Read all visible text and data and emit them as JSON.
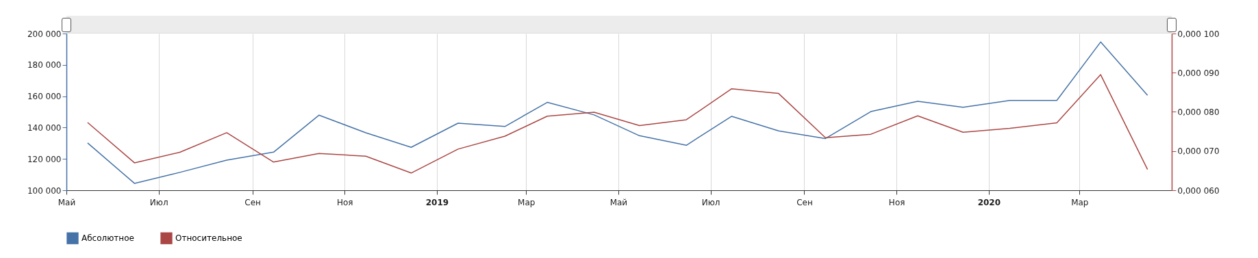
{
  "chart_data": {
    "type": "line",
    "x": [
      "2018-05-15",
      "2018-06-15",
      "2018-07-15",
      "2018-08-15",
      "2018-09-15",
      "2018-10-15",
      "2018-11-15",
      "2018-12-15",
      "2019-01-15",
      "2019-02-15",
      "2019-03-15",
      "2019-04-15",
      "2019-05-15",
      "2019-06-15",
      "2019-07-15",
      "2019-08-15",
      "2019-09-15",
      "2019-10-15",
      "2019-11-15",
      "2019-12-15",
      "2020-01-15",
      "2020-02-15",
      "2020-03-15",
      "2020-04-15"
    ],
    "series": [
      {
        "name": "Абсолютное",
        "color": "#4572a7",
        "values": [
          130200,
          104400,
          111400,
          119200,
          124300,
          147900,
          136700,
          127400,
          142800,
          140700,
          156100,
          148100,
          134800,
          128700,
          147200,
          137900,
          133000,
          150200,
          156800,
          152900,
          157300,
          157300,
          194600,
          160600
        ]
      },
      {
        "name": "Относительное",
        "color": "#aa4643",
        "axis": "y2",
        "values": [
          7.73e-05,
          6.7e-05,
          6.97e-05,
          7.47e-05,
          6.72e-05,
          6.94e-05,
          6.87e-05,
          6.44e-05,
          7.05e-05,
          7.38e-05,
          7.89e-05,
          7.99e-05,
          7.65e-05,
          7.8e-05,
          8.59e-05,
          8.47e-05,
          7.34e-05,
          7.43e-05,
          7.9e-05,
          7.48e-05,
          7.58e-05,
          7.72e-05,
          8.95e-05,
          6.53e-05
        ]
      }
    ],
    "xlim": [
      "2018-05-01",
      "2020-05-01"
    ],
    "xticks": [
      {
        "value": "2018-05-01",
        "label": "Май"
      },
      {
        "value": "2018-07-01",
        "label": "Июл"
      },
      {
        "value": "2018-09-01",
        "label": "Сен"
      },
      {
        "value": "2018-11-01",
        "label": "Ноя"
      },
      {
        "value": "2019-01-01",
        "label": "2019"
      },
      {
        "value": "2019-03-01",
        "label": "Мар"
      },
      {
        "value": "2019-05-01",
        "label": "Май"
      },
      {
        "value": "2019-07-01",
        "label": "Июл"
      },
      {
        "value": "2019-09-01",
        "label": "Сен"
      },
      {
        "value": "2019-11-01",
        "label": "Ноя"
      },
      {
        "value": "2020-01-01",
        "label": "2020"
      },
      {
        "value": "2020-03-01",
        "label": "Мар"
      }
    ],
    "ylim": [
      100000,
      200000
    ],
    "yticks": [
      {
        "value": 100000,
        "label": "100 000"
      },
      {
        "value": 120000,
        "label": "120 000"
      },
      {
        "value": 140000,
        "label": "140 000"
      },
      {
        "value": 160000,
        "label": "160 000"
      },
      {
        "value": 180000,
        "label": "180 000"
      },
      {
        "value": 200000,
        "label": "200 000"
      }
    ],
    "y2lim": [
      6e-05,
      0.0001
    ],
    "y2ticks": [
      {
        "value": 6e-05,
        "label": "0,000 060"
      },
      {
        "value": 7e-05,
        "label": "0,000 070"
      },
      {
        "value": 8e-05,
        "label": "0,000 080"
      },
      {
        "value": 9e-05,
        "label": "0,000 090"
      },
      {
        "value": 0.0001,
        "label": "0,000 100"
      }
    ],
    "grid": "x",
    "legend": "bottom left",
    "marker": "none",
    "line_style": "solid"
  }
}
